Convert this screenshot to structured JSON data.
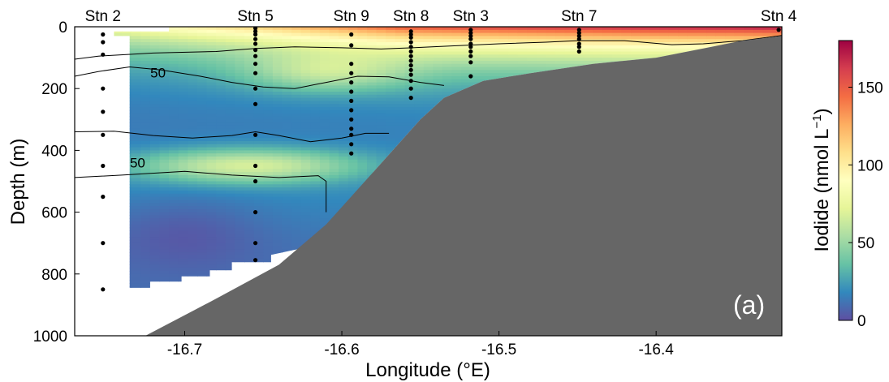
{
  "chart_data": {
    "type": "heatmap",
    "title": "",
    "panel_label": "(a)",
    "xlabel": "Longitude (°E)",
    "ylabel": "Depth (m)",
    "xlim": [
      -16.77,
      -16.32
    ],
    "ylim": [
      1000,
      0
    ],
    "x_ticks": [
      {
        "value": -16.7,
        "label": "-16.7"
      },
      {
        "value": -16.6,
        "label": "-16.6"
      },
      {
        "value": -16.5,
        "label": "-16.5"
      },
      {
        "value": -16.4,
        "label": "-16.4"
      }
    ],
    "y_ticks": [
      {
        "value": 0,
        "label": "0"
      },
      {
        "value": 200,
        "label": "200"
      },
      {
        "value": 400,
        "label": "400"
      },
      {
        "value": 600,
        "label": "600"
      },
      {
        "value": 800,
        "label": "800"
      },
      {
        "value": 1000,
        "label": "1000"
      }
    ],
    "colorbar": {
      "label": "Iodide (nmol L",
      "label_superscript": "−1",
      "label_close": ")",
      "range": [
        0,
        180
      ],
      "ticks": [
        {
          "value": 0,
          "label": "0"
        },
        {
          "value": 50,
          "label": "50"
        },
        {
          "value": 100,
          "label": "100"
        },
        {
          "value": 150,
          "label": "150"
        }
      ],
      "colormap": [
        "#5e4fa2",
        "#3288bd",
        "#66c2a5",
        "#abdda4",
        "#e6f598",
        "#ffffbf",
        "#fee08b",
        "#fdae61",
        "#f46d43",
        "#d53e4f",
        "#9e0142"
      ]
    },
    "stations": [
      {
        "name": "Stn 2",
        "lon": -16.752,
        "sample_depths": [
          25,
          50,
          90,
          200,
          275,
          350,
          450,
          550,
          700,
          850
        ]
      },
      {
        "name": "Stn 5",
        "lon": -16.655,
        "sample_depths": [
          5,
          15,
          25,
          40,
          55,
          75,
          95,
          120,
          150,
          200,
          250,
          350,
          450,
          500,
          600,
          700,
          755
        ]
      },
      {
        "name": "Stn 9",
        "lon": -16.594,
        "sample_depths": [
          25,
          60,
          120,
          150,
          180,
          210,
          240,
          270,
          300,
          330,
          350,
          380,
          410
        ]
      },
      {
        "name": "Stn 8",
        "lon": -16.556,
        "sample_depths": [
          15,
          25,
          35,
          50,
          65,
          80,
          95,
          110,
          125,
          140,
          155,
          175,
          200,
          230
        ]
      },
      {
        "name": "Stn 3",
        "lon": -16.518,
        "sample_depths": [
          10,
          20,
          30,
          40,
          55,
          65,
          80,
          95,
          115,
          160
        ]
      },
      {
        "name": "Stn 7",
        "lon": -16.449,
        "sample_depths": [
          10,
          20,
          30,
          40,
          55,
          65,
          80
        ]
      },
      {
        "name": "Stn 4",
        "lon": -16.322,
        "sample_depths": [
          10
        ]
      }
    ],
    "seafloor": [
      [
        -16.77,
        1100
      ],
      [
        -16.725,
        1000
      ],
      [
        -16.68,
        880
      ],
      [
        -16.64,
        770
      ],
      [
        -16.61,
        640
      ],
      [
        -16.58,
        470
      ],
      [
        -16.55,
        300
      ],
      [
        -16.535,
        230
      ],
      [
        -16.51,
        175
      ],
      [
        -16.48,
        150
      ],
      [
        -16.44,
        120
      ],
      [
        -16.4,
        100
      ],
      [
        -16.37,
        70
      ],
      [
        -16.345,
        45
      ],
      [
        -16.32,
        30
      ]
    ],
    "data_extent": [
      [
        -16.745,
        30
      ],
      [
        -16.735,
        30
      ],
      [
        -16.735,
        845
      ],
      [
        -16.722,
        845
      ],
      [
        -16.722,
        825
      ],
      [
        -16.702,
        825
      ],
      [
        -16.702,
        808
      ],
      [
        -16.684,
        808
      ],
      [
        -16.684,
        788
      ],
      [
        -16.67,
        788
      ],
      [
        -16.67,
        762
      ],
      [
        -16.645,
        762
      ],
      [
        -16.645,
        738
      ],
      [
        -16.61,
        700
      ],
      [
        -16.58,
        470
      ],
      [
        -16.55,
        300
      ],
      [
        -16.535,
        230
      ],
      [
        -16.51,
        175
      ],
      [
        -16.48,
        150
      ],
      [
        -16.44,
        120
      ],
      [
        -16.4,
        100
      ],
      [
        -16.37,
        70
      ],
      [
        -16.345,
        45
      ],
      [
        -16.32,
        30
      ],
      [
        -16.32,
        0
      ],
      [
        -16.71,
        0
      ],
      [
        -16.71,
        15
      ],
      [
        -16.745,
        15
      ]
    ],
    "contours": [
      [
        [
          -16.77,
          105
        ],
        [
          -16.755,
          95
        ],
        [
          -16.72,
          85
        ],
        [
          -16.68,
          80
        ],
        [
          -16.655,
          70
        ],
        [
          -16.63,
          65
        ],
        [
          -16.6,
          68
        ],
        [
          -16.575,
          72
        ],
        [
          -16.555,
          68
        ],
        [
          -16.53,
          62
        ],
        [
          -16.5,
          55
        ],
        [
          -16.47,
          50
        ],
        [
          -16.45,
          45
        ],
        [
          -16.42,
          45
        ],
        [
          -16.39,
          58
        ],
        [
          -16.37,
          55
        ],
        [
          -16.345,
          45
        ],
        [
          -16.32,
          28
        ]
      ],
      [
        [
          -16.77,
          160
        ],
        [
          -16.755,
          145
        ],
        [
          -16.735,
          130
        ],
        [
          -16.715,
          140
        ],
        [
          -16.69,
          160
        ],
        [
          -16.67,
          180
        ],
        [
          -16.65,
          195
        ],
        [
          -16.63,
          200
        ],
        [
          -16.61,
          180
        ],
        [
          -16.59,
          160
        ],
        [
          -16.57,
          162
        ],
        [
          -16.55,
          180
        ],
        [
          -16.535,
          190
        ]
      ],
      [
        [
          -16.77,
          340
        ],
        [
          -16.745,
          338
        ],
        [
          -16.72,
          352
        ],
        [
          -16.695,
          360
        ],
        [
          -16.67,
          352
        ],
        [
          -16.655,
          340
        ],
        [
          -16.64,
          352
        ],
        [
          -16.62,
          372
        ],
        [
          -16.6,
          360
        ],
        [
          -16.585,
          345
        ],
        [
          -16.57,
          345
        ]
      ],
      [
        [
          -16.77,
          488
        ],
        [
          -16.74,
          480
        ],
        [
          -16.7,
          468
        ],
        [
          -16.67,
          480
        ],
        [
          -16.64,
          488
        ],
        [
          -16.615,
          482
        ],
        [
          -16.61,
          500
        ],
        [
          -16.61,
          600
        ]
      ]
    ],
    "contour_labels": [
      {
        "text": "50",
        "lon": -16.717,
        "depth": 148
      },
      {
        "text": "50",
        "lon": -16.73,
        "depth": 440
      }
    ],
    "iodide_field": {
      "surface_max_by_lon": [
        [
          -16.74,
          85
        ],
        [
          -16.7,
          98
        ],
        [
          -16.65,
          115
        ],
        [
          -16.6,
          135
        ],
        [
          -16.56,
          152
        ],
        [
          -16.5,
          160
        ],
        [
          -16.45,
          165
        ],
        [
          -16.4,
          170
        ],
        [
          -16.35,
          172
        ],
        [
          -16.32,
          175
        ]
      ],
      "mid_depth_max": {
        "lon": -16.66,
        "depth": 450,
        "value": 95
      },
      "deep_min_value": 10
    }
  }
}
